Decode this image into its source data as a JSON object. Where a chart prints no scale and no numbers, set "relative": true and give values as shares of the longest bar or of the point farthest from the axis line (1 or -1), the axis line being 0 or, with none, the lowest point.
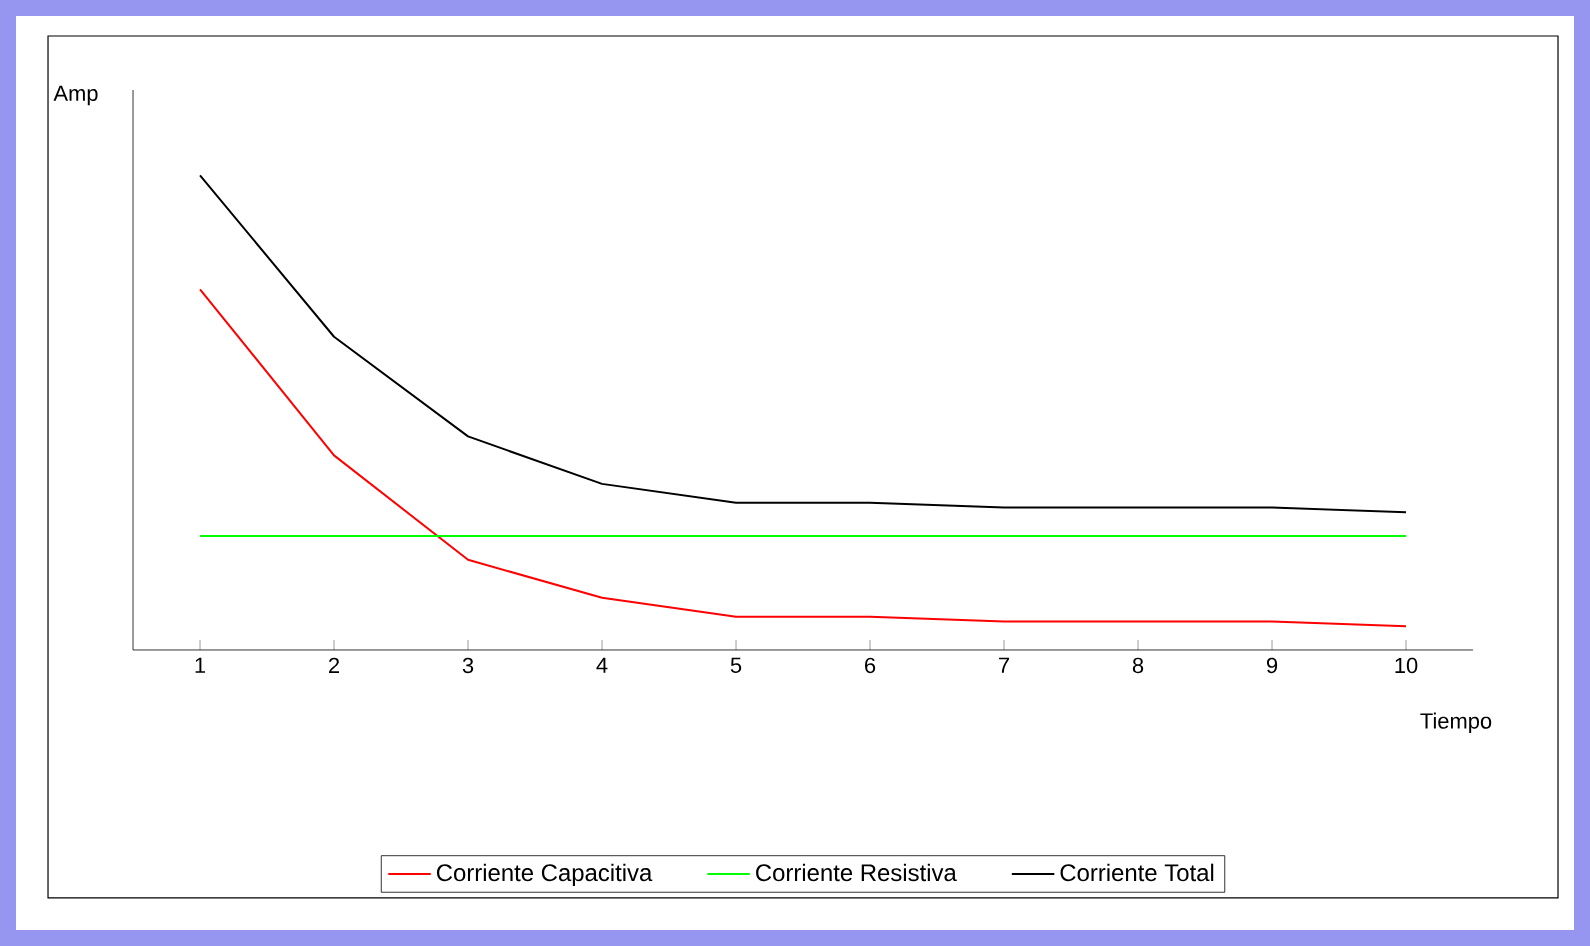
{
  "chart_data": {
    "type": "line",
    "xlabel": "Tiempo",
    "ylabel": "Amp",
    "relative": true,
    "categories": [
      "1",
      "2",
      "3",
      "4",
      "5",
      "6",
      "7",
      "8",
      "9",
      "10"
    ],
    "series": [
      {
        "name": "Corriente Capacitiva",
        "color": "#ff0000",
        "values": [
          0.76,
          0.41,
          0.19,
          0.11,
          0.07,
          0.07,
          0.06,
          0.06,
          0.06,
          0.05
        ]
      },
      {
        "name": "Corriente Resistiva",
        "color": "#00ff00",
        "values": [
          0.24,
          0.24,
          0.24,
          0.24,
          0.24,
          0.24,
          0.24,
          0.24,
          0.24,
          0.24
        ]
      },
      {
        "name": "Corriente Total",
        "color": "#000000",
        "values": [
          1,
          0.66,
          0.45,
          0.35,
          0.31,
          0.31,
          0.3,
          0.3,
          0.3,
          0.29
        ]
      }
    ],
    "legend": "bottom",
    "marker": "none",
    "line_style": "solid",
    "grid": false
  }
}
